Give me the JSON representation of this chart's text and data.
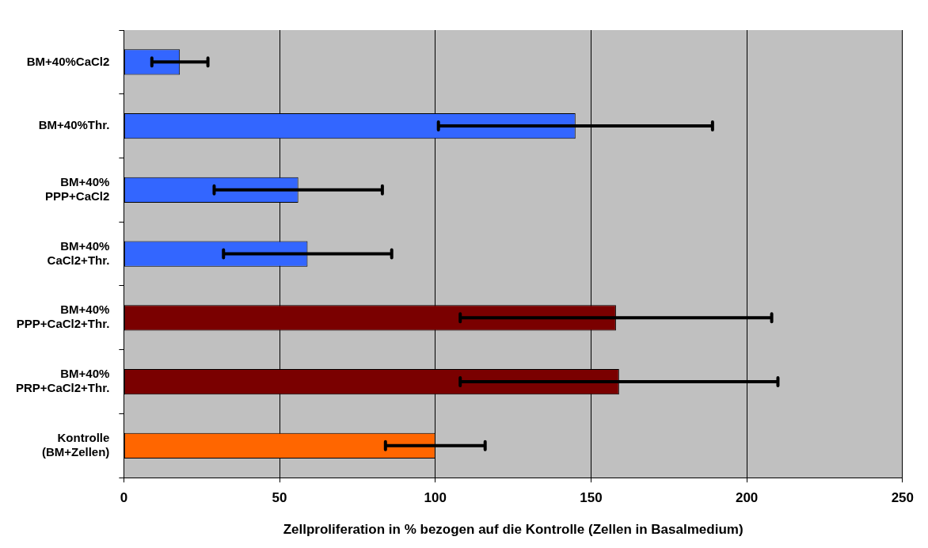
{
  "chart_data": {
    "type": "bar",
    "orientation": "horizontal",
    "xlabel": "Zellproliferation in % bezogen auf die Kontrolle (Zellen in Basalmedium)",
    "categories": [
      "BM+40%CaCl2",
      "BM+40%Thr.",
      "BM+40% PPP+CaCl2",
      "BM+40% CaCl2+Thr.",
      "BM+40% PPP+CaCl2+Thr.",
      "BM+40% PRP+CaCl2+Thr.",
      "Kontrolle (BM+Zellen)"
    ],
    "values": [
      18,
      145,
      56,
      59,
      158,
      159,
      100
    ],
    "errors": [
      9,
      44,
      27,
      27,
      50,
      51,
      16
    ],
    "colors": [
      "#3366ff",
      "#3366ff",
      "#3366ff",
      "#3366ff",
      "#7a0000",
      "#7a0000",
      "#ff6600"
    ],
    "xlim": [
      0,
      250
    ],
    "xticks": [
      0,
      50,
      100,
      150,
      200,
      250
    ],
    "grid": "x",
    "legend": false
  }
}
